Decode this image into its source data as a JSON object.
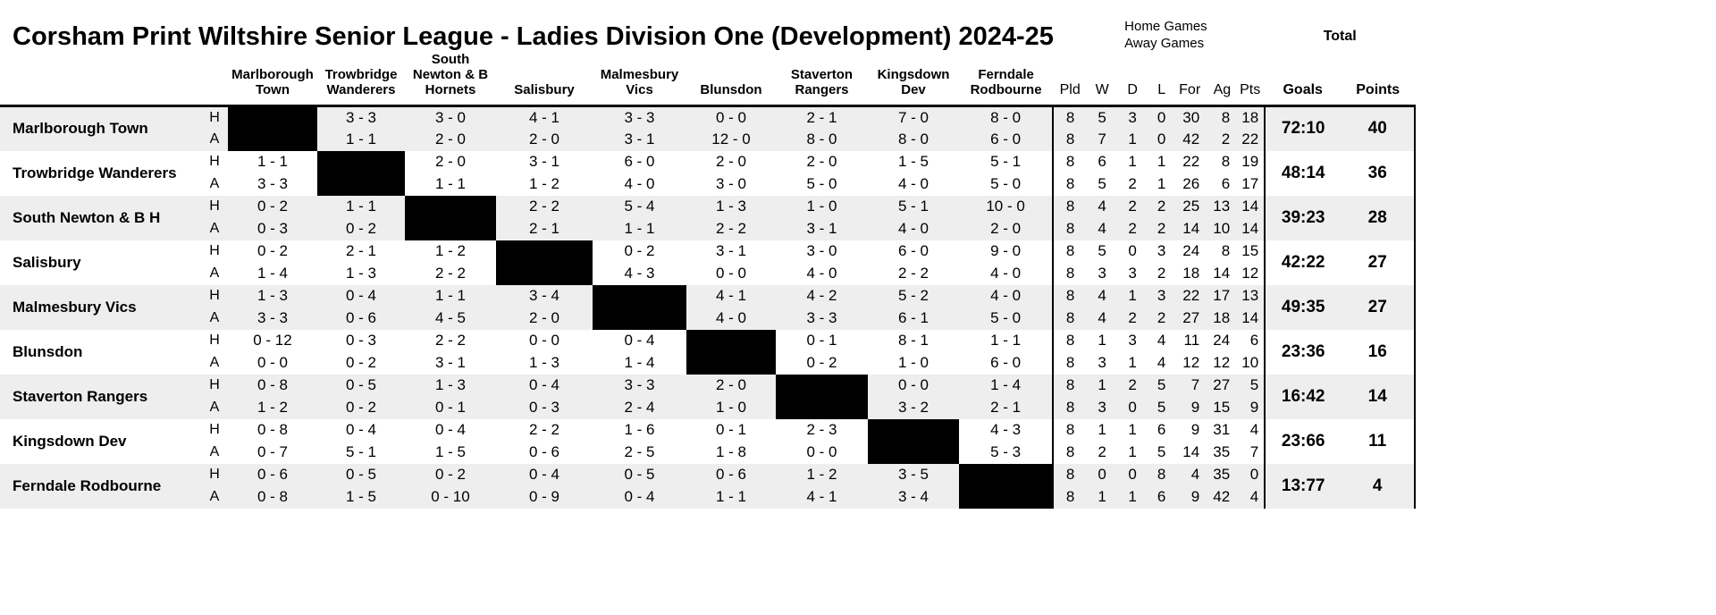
{
  "title": "Corsham Print Wiltshire Senior League - Ladies Division One (Development) 2024-25",
  "legend": {
    "home": "Home Games",
    "away": "Away Games",
    "total": "Total"
  },
  "ha_labels": [
    "H",
    "A"
  ],
  "opponents": [
    "Marlborough Town",
    "Trowbridge Wanderers",
    "South Newton & B Hornets",
    "Salisbury",
    "Malmesbury Vics",
    "Blunsdon",
    "Staverton Rangers",
    "Kingsdown Dev",
    "Ferndale Rodbourne"
  ],
  "stat_headers": [
    "Pld",
    "W",
    "D",
    "L",
    "For",
    "Ag",
    "Pts"
  ],
  "total_headers": [
    "Goals",
    "Points"
  ],
  "rows": [
    {
      "team": "Marlborough Town",
      "home": {
        "results": [
          null,
          "3 - 3",
          "3 - 0",
          "4 - 1",
          "3 - 3",
          "0 - 0",
          "2 - 1",
          "7 - 0",
          "8 - 0"
        ],
        "stats": [
          "8",
          "5",
          "3",
          "0",
          "30",
          "8",
          "18"
        ]
      },
      "away": {
        "results": [
          null,
          "1 - 1",
          "2 - 0",
          "2 - 0",
          "3 - 1",
          "12 - 0",
          "8 - 0",
          "8 - 0",
          "6 - 0"
        ],
        "stats": [
          "8",
          "7",
          "1",
          "0",
          "42",
          "2",
          "22"
        ]
      },
      "goals": "72:10",
      "points": "40"
    },
    {
      "team": "Trowbridge Wanderers",
      "home": {
        "results": [
          "1 - 1",
          null,
          "2 - 0",
          "3 - 1",
          "6 - 0",
          "2 - 0",
          "2 - 0",
          "1 - 5",
          "5 - 1"
        ],
        "stats": [
          "8",
          "6",
          "1",
          "1",
          "22",
          "8",
          "19"
        ]
      },
      "away": {
        "results": [
          "3 - 3",
          null,
          "1 - 1",
          "1 - 2",
          "4 - 0",
          "3 - 0",
          "5 - 0",
          "4 - 0",
          "5 - 0"
        ],
        "stats": [
          "8",
          "5",
          "2",
          "1",
          "26",
          "6",
          "17"
        ]
      },
      "goals": "48:14",
      "points": "36"
    },
    {
      "team": "South Newton & B H",
      "home": {
        "results": [
          "0 - 2",
          "1 - 1",
          null,
          "2 - 2",
          "5 - 4",
          "1 - 3",
          "1 - 0",
          "5 - 1",
          "10 - 0"
        ],
        "stats": [
          "8",
          "4",
          "2",
          "2",
          "25",
          "13",
          "14"
        ]
      },
      "away": {
        "results": [
          "0 - 3",
          "0 - 2",
          null,
          "2 - 1",
          "1 - 1",
          "2 - 2",
          "3 - 1",
          "4 - 0",
          "2 - 0"
        ],
        "stats": [
          "8",
          "4",
          "2",
          "2",
          "14",
          "10",
          "14"
        ]
      },
      "goals": "39:23",
      "points": "28"
    },
    {
      "team": "Salisbury",
      "home": {
        "results": [
          "0 - 2",
          "2 - 1",
          "1 - 2",
          null,
          "0 - 2",
          "3 - 1",
          "3 - 0",
          "6 - 0",
          "9 - 0"
        ],
        "stats": [
          "8",
          "5",
          "0",
          "3",
          "24",
          "8",
          "15"
        ]
      },
      "away": {
        "results": [
          "1 - 4",
          "1 - 3",
          "2 - 2",
          null,
          "4 - 3",
          "0 - 0",
          "4 - 0",
          "2 - 2",
          "4 - 0"
        ],
        "stats": [
          "8",
          "3",
          "3",
          "2",
          "18",
          "14",
          "12"
        ]
      },
      "goals": "42:22",
      "points": "27"
    },
    {
      "team": "Malmesbury Vics",
      "home": {
        "results": [
          "1 - 3",
          "0 - 4",
          "1 - 1",
          "3 - 4",
          null,
          "4 - 1",
          "4 - 2",
          "5 - 2",
          "4 - 0"
        ],
        "stats": [
          "8",
          "4",
          "1",
          "3",
          "22",
          "17",
          "13"
        ]
      },
      "away": {
        "results": [
          "3 - 3",
          "0 - 6",
          "4 - 5",
          "2 - 0",
          null,
          "4 - 0",
          "3 - 3",
          "6 - 1",
          "5 - 0"
        ],
        "stats": [
          "8",
          "4",
          "2",
          "2",
          "27",
          "18",
          "14"
        ]
      },
      "goals": "49:35",
      "points": "27"
    },
    {
      "team": "Blunsdon",
      "home": {
        "results": [
          "0 - 12",
          "0 - 3",
          "2 - 2",
          "0 - 0",
          "0 - 4",
          null,
          "0 - 1",
          "8 - 1",
          "1 - 1"
        ],
        "stats": [
          "8",
          "1",
          "3",
          "4",
          "11",
          "24",
          "6"
        ]
      },
      "away": {
        "results": [
          "0 - 0",
          "0 - 2",
          "3 - 1",
          "1 - 3",
          "1 - 4",
          null,
          "0 - 2",
          "1 - 0",
          "6 - 0"
        ],
        "stats": [
          "8",
          "3",
          "1",
          "4",
          "12",
          "12",
          "10"
        ]
      },
      "goals": "23:36",
      "points": "16"
    },
    {
      "team": "Staverton Rangers",
      "home": {
        "results": [
          "0 - 8",
          "0 - 5",
          "1 - 3",
          "0 - 4",
          "3 - 3",
          "2 - 0",
          null,
          "0 - 0",
          "1 - 4"
        ],
        "stats": [
          "8",
          "1",
          "2",
          "5",
          "7",
          "27",
          "5"
        ]
      },
      "away": {
        "results": [
          "1 - 2",
          "0 - 2",
          "0 - 1",
          "0 - 3",
          "2 - 4",
          "1 - 0",
          null,
          "3 - 2",
          "2 - 1"
        ],
        "stats": [
          "8",
          "3",
          "0",
          "5",
          "9",
          "15",
          "9"
        ]
      },
      "goals": "16:42",
      "points": "14"
    },
    {
      "team": "Kingsdown Dev",
      "home": {
        "results": [
          "0 - 8",
          "0 - 4",
          "0 - 4",
          "2 - 2",
          "1 - 6",
          "0 - 1",
          "2 - 3",
          null,
          "4 - 3"
        ],
        "stats": [
          "8",
          "1",
          "1",
          "6",
          "9",
          "31",
          "4"
        ]
      },
      "away": {
        "results": [
          "0 - 7",
          "5 - 1",
          "1 - 5",
          "0 - 6",
          "2 - 5",
          "1 - 8",
          "0 - 0",
          null,
          "5 - 3"
        ],
        "stats": [
          "8",
          "2",
          "1",
          "5",
          "14",
          "35",
          "7"
        ]
      },
      "goals": "23:66",
      "points": "11"
    },
    {
      "team": "Ferndale Rodbourne",
      "home": {
        "results": [
          "0 - 6",
          "0 - 5",
          "0 - 2",
          "0 - 4",
          "0 - 5",
          "0 - 6",
          "1 - 2",
          "3 - 5",
          null
        ],
        "stats": [
          "8",
          "0",
          "0",
          "8",
          "4",
          "35",
          "0"
        ]
      },
      "away": {
        "results": [
          "0 - 8",
          "1 - 5",
          "0 - 10",
          "0 - 9",
          "0 - 4",
          "1 - 1",
          "4 - 1",
          "3 - 4",
          null
        ],
        "stats": [
          "8",
          "1",
          "1",
          "6",
          "9",
          "42",
          "4"
        ]
      },
      "goals": "13:77",
      "points": "4"
    }
  ]
}
